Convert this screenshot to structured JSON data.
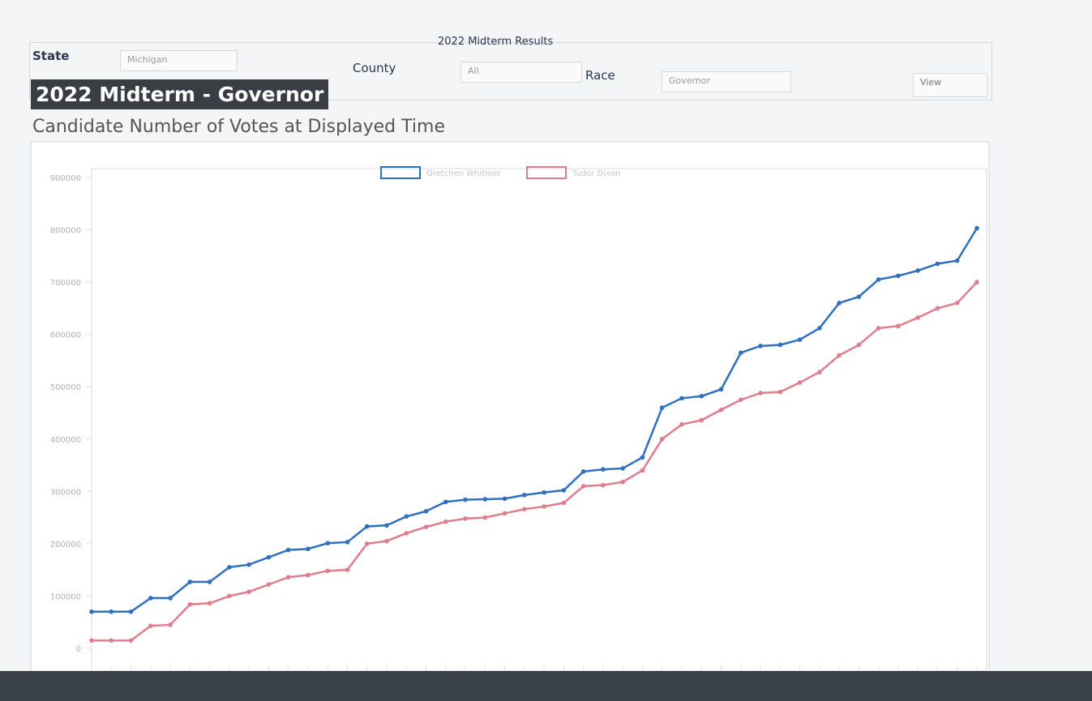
{
  "header": {
    "panel_title": "2022 Midterm Results",
    "state_label": "State",
    "state_value": "Michigan",
    "county_label": "County",
    "county_value": "All",
    "race_label": "Race",
    "race_value": "Governor",
    "button": "View"
  },
  "chart_data": {
    "type": "line",
    "title": "2022 Midterm - Governor",
    "subtitle": "Candidate Number of Votes at Displayed Time",
    "categories": [
      null,
      null,
      null,
      null,
      null,
      null,
      null,
      null,
      null,
      null,
      null,
      null,
      null,
      null,
      null,
      null,
      null,
      null,
      null,
      null,
      null,
      null,
      null,
      null,
      null,
      null,
      null,
      null,
      null,
      null,
      null,
      null,
      null,
      null,
      null,
      null,
      null,
      null,
      null,
      null,
      null,
      null,
      null,
      null,
      null,
      null
    ],
    "series": [
      {
        "name": "Gretchen Whitmer",
        "color": "#2f6fc0",
        "values": [
          70000,
          70000,
          70000,
          96000,
          96000,
          127000,
          127000,
          155000,
          160000,
          174000,
          188000,
          190000,
          201000,
          203000,
          233000,
          235000,
          252000,
          262000,
          280000,
          284000,
          285000,
          286000,
          293000,
          298000,
          302000,
          338000,
          342000,
          344000,
          365000,
          460000,
          478000,
          482000,
          495000,
          565000,
          578000,
          580000,
          590000,
          612000,
          660000,
          672000,
          705000,
          712000,
          722000,
          735000,
          741000,
          803000
        ]
      },
      {
        "name": "Tudor Dixon",
        "color": "#e07d8c",
        "values": [
          15000,
          15000,
          15000,
          43000,
          45000,
          84000,
          86000,
          100000,
          108000,
          122000,
          136000,
          140000,
          148000,
          150000,
          200000,
          205000,
          220000,
          232000,
          242000,
          248000,
          250000,
          258000,
          266000,
          271000,
          278000,
          310000,
          312000,
          318000,
          340000,
          400000,
          428000,
          436000,
          456000,
          475000,
          488000,
          490000,
          508000,
          528000,
          560000,
          580000,
          612000,
          616000,
          632000,
          650000,
          660000,
          700000
        ]
      }
    ],
    "ylim": [
      0,
      900000
    ],
    "yticks": [
      0,
      100000,
      200000,
      300000,
      400000,
      500000,
      600000,
      700000,
      800000,
      900000
    ],
    "grid": false
  }
}
